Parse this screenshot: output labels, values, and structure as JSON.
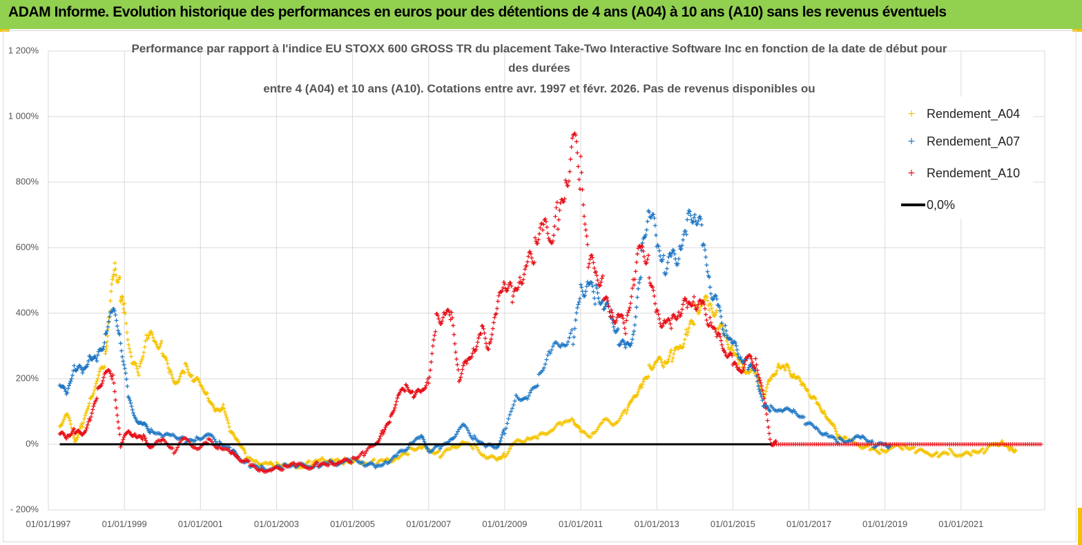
{
  "banner": {
    "title": "ADAM Informe. Evolution historique des performances en euros pour des détentions de 4 ans (A04) à 10 ans (A10) sans les revenus éventuels"
  },
  "colors": {
    "banner_bg": "#92d050",
    "A04": "#f5c400",
    "A07": "#1f77c4",
    "A10": "#e8121a",
    "zero_line": "#000000"
  },
  "chart_data": {
    "type": "scatter",
    "title_lines": [
      "Performance par rapport à l'indice EU STOXX 600 GROSS TR  du placement Take-Two Interactive Software Inc en fonction de la date de début pour",
      "des durées",
      "entre 4 (A04) et 10 ans (A10). Cotations entre avr. 1997 et févr. 2026. Pas de revenus disponibles ou"
    ],
    "marker": "+",
    "ylim": [
      -200,
      1200
    ],
    "y_ticks": [
      {
        "value": -200,
        "label": "- 200%"
      },
      {
        "value": 0,
        "label": "0%"
      },
      {
        "value": 200,
        "label": "200%"
      },
      {
        "value": 400,
        "label": "400%"
      },
      {
        "value": 600,
        "label": "600%"
      },
      {
        "value": 800,
        "label": "800%"
      },
      {
        "value": 1000,
        "label": "1 000%"
      },
      {
        "value": 1200,
        "label": "1 200%"
      }
    ],
    "xlim": [
      1997.0,
      2023.2
    ],
    "x_ticks": [
      {
        "value": 1997,
        "label": "01/01/1997"
      },
      {
        "value": 1999,
        "label": "01/01/1999"
      },
      {
        "value": 2001,
        "label": "01/01/2001"
      },
      {
        "value": 2003,
        "label": "01/01/2003"
      },
      {
        "value": 2005,
        "label": "01/01/2005"
      },
      {
        "value": 2007,
        "label": "01/01/2007"
      },
      {
        "value": 2009,
        "label": "01/01/2009"
      },
      {
        "value": 2011,
        "label": "01/01/2011"
      },
      {
        "value": 2013,
        "label": "01/01/2013"
      },
      {
        "value": 2015,
        "label": "01/01/2015"
      },
      {
        "value": 2017,
        "label": "01/01/2017"
      },
      {
        "value": 2019,
        "label": "01/01/2019"
      },
      {
        "value": 2021,
        "label": "01/01/2021"
      }
    ],
    "grid": true,
    "legend_position": "top-right",
    "series": [
      {
        "name": "Rendement_A04",
        "color": "#f5c400",
        "x": [
          1997.3,
          1997.5,
          1997.7,
          1997.9,
          1998.1,
          1998.3,
          1998.5,
          1998.6,
          1998.75,
          1998.9,
          1999.0,
          1999.2,
          1999.4,
          1999.6,
          1999.8,
          2000.0,
          2000.2,
          2000.4,
          2000.6,
          2000.8,
          2001.0,
          2001.2,
          2001.4,
          2001.6,
          2001.8,
          2002.0,
          2002.2,
          2002.5,
          2002.8,
          2003.0,
          2003.3,
          2003.6,
          2003.9,
          2004.2,
          2004.5,
          2004.8,
          2005.0,
          2005.3,
          2005.6,
          2005.9,
          2006.2,
          2006.5,
          2006.8,
          2007.0,
          2007.3,
          2007.6,
          2007.9,
          2008.2,
          2008.5,
          2008.8,
          2009.0,
          2009.3,
          2009.6,
          2009.9,
          2010.2,
          2010.5,
          2010.8,
          2011.0,
          2011.3,
          2011.6,
          2011.9,
          2012.2,
          2012.4,
          2012.6,
          2012.8,
          2013.0,
          2013.2,
          2013.4,
          2013.6,
          2013.8,
          2014.0,
          2014.2,
          2014.4,
          2014.6,
          2014.8,
          2015.0,
          2015.2,
          2015.4,
          2015.6,
          2015.8,
          2016.0,
          2016.2,
          2016.4,
          2016.6,
          2016.8,
          2017.0,
          2017.2,
          2017.4,
          2017.6,
          2017.8,
          2018.0,
          2018.3,
          2018.6,
          2018.9,
          2019.2,
          2019.5,
          2019.8,
          2020.1,
          2020.4,
          2020.7,
          2021.0,
          2021.3,
          2021.6,
          2021.9,
          2022.1,
          2022.3
        ],
        "y": [
          50,
          90,
          10,
          60,
          140,
          200,
          260,
          380,
          550,
          470,
          420,
          250,
          220,
          330,
          310,
          300,
          220,
          190,
          230,
          200,
          180,
          150,
          100,
          120,
          30,
          10,
          -40,
          -50,
          -60,
          -60,
          -70,
          -70,
          -60,
          -40,
          -50,
          -50,
          -55,
          -60,
          -55,
          -45,
          -40,
          -20,
          -10,
          -20,
          -30,
          -10,
          10,
          -10,
          -40,
          -50,
          -30,
          10,
          20,
          20,
          40,
          60,
          80,
          40,
          30,
          70,
          60,
          100,
          150,
          180,
          230,
          250,
          240,
          270,
          300,
          350,
          400,
          430,
          410,
          380,
          330,
          300,
          240,
          220,
          210,
          150,
          200,
          250,
          230,
          210,
          180,
          160,
          130,
          100,
          60,
          20,
          10,
          0,
          -10,
          -20,
          -10,
          -10,
          -20,
          -25,
          -30,
          -20,
          -35,
          -30,
          -20,
          0,
          10,
          -15
        ]
      },
      {
        "name": "Rendement_A07",
        "color": "#1f77c4",
        "x": [
          1997.3,
          1997.5,
          1997.7,
          1997.9,
          1998.1,
          1998.3,
          1998.5,
          1998.7,
          1998.9,
          1999.1,
          1999.3,
          1999.5,
          1999.7,
          2000.0,
          2000.3,
          2000.6,
          2000.9,
          2001.2,
          2001.5,
          2001.8,
          2002.0,
          2002.3,
          2002.6,
          2002.9,
          2003.2,
          2003.5,
          2003.8,
          2004.1,
          2004.4,
          2004.7,
          2005.0,
          2005.3,
          2005.6,
          2005.9,
          2006.2,
          2006.5,
          2006.8,
          2007.0,
          2007.3,
          2007.6,
          2007.9,
          2008.2,
          2008.5,
          2008.8,
          2009.0,
          2009.3,
          2009.6,
          2009.9,
          2010.2,
          2010.5,
          2010.8,
          2011.0,
          2011.2,
          2011.4,
          2011.6,
          2011.8,
          2012.0,
          2012.2,
          2012.4,
          2012.6,
          2012.8,
          2013.0,
          2013.2,
          2013.4,
          2013.6,
          2013.8,
          2014.0,
          2014.2,
          2014.4,
          2014.6,
          2014.8,
          2015.0,
          2015.2,
          2015.4,
          2015.6,
          2015.8,
          2016.0,
          2016.3,
          2016.6,
          2016.9,
          2017.2,
          2017.5,
          2017.8,
          2018.1,
          2018.4,
          2018.7,
          2019.0
        ],
        "y": [
          180,
          150,
          240,
          220,
          280,
          260,
          330,
          400,
          320,
          150,
          80,
          60,
          40,
          20,
          30,
          10,
          20,
          30,
          0,
          -20,
          -40,
          -60,
          -70,
          -75,
          -70,
          -65,
          -70,
          -60,
          -55,
          -55,
          -50,
          -60,
          -70,
          -50,
          -30,
          0,
          20,
          -20,
          -10,
          20,
          60,
          20,
          -10,
          -10,
          40,
          150,
          140,
          200,
          280,
          300,
          330,
          480,
          500,
          450,
          420,
          380,
          330,
          300,
          350,
          550,
          720,
          600,
          560,
          580,
          600,
          650,
          700,
          620,
          500,
          430,
          350,
          300,
          260,
          240,
          230,
          120,
          110,
          100,
          100,
          70,
          50,
          30,
          10,
          10,
          20,
          0,
          0
        ]
      },
      {
        "name": "Rendement_A10",
        "color": "#e8121a",
        "x": [
          1997.3,
          1997.5,
          1997.7,
          1997.9,
          1998.1,
          1998.3,
          1998.5,
          1998.7,
          1998.9,
          1999.1,
          1999.3,
          1999.5,
          1999.7,
          2000.0,
          2000.3,
          2000.6,
          2000.9,
          2001.2,
          2001.5,
          2001.8,
          2002.0,
          2002.3,
          2002.6,
          2002.9,
          2003.2,
          2003.5,
          2003.8,
          2004.1,
          2004.4,
          2004.7,
          2005.0,
          2005.3,
          2005.6,
          2005.8,
          2006.0,
          2006.2,
          2006.4,
          2006.6,
          2006.8,
          2007.0,
          2007.2,
          2007.4,
          2007.6,
          2007.8,
          2008.0,
          2008.2,
          2008.4,
          2008.6,
          2008.8,
          2009.0,
          2009.2,
          2009.4,
          2009.6,
          2009.8,
          2010.0,
          2010.2,
          2010.4,
          2010.6,
          2010.8,
          2011.0,
          2011.2,
          2011.4,
          2011.6,
          2011.8,
          2012.0,
          2012.2,
          2012.4,
          2012.6,
          2012.8,
          2013.0,
          2013.2,
          2013.4,
          2013.6,
          2013.8,
          2014.0,
          2014.2,
          2014.4,
          2014.6,
          2014.8,
          2015.0,
          2015.2,
          2015.4,
          2015.6,
          2015.8,
          2016.0
        ],
        "y": [
          30,
          20,
          40,
          30,
          80,
          160,
          220,
          200,
          0,
          40,
          30,
          20,
          -10,
          10,
          -20,
          20,
          -10,
          10,
          -10,
          -30,
          -40,
          -60,
          -75,
          -80,
          -70,
          -65,
          -70,
          -60,
          -55,
          -55,
          -50,
          -30,
          0,
          40,
          80,
          150,
          170,
          150,
          160,
          200,
          380,
          400,
          380,
          200,
          250,
          300,
          350,
          300,
          400,
          500,
          450,
          520,
          550,
          600,
          650,
          620,
          700,
          800,
          950,
          820,
          550,
          520,
          480,
          400,
          400,
          350,
          500,
          600,
          550,
          400,
          380,
          360,
          400,
          420,
          450,
          430,
          380,
          320,
          280,
          250,
          230,
          270,
          250,
          150,
          0
        ]
      }
    ],
    "zero_line": {
      "name": "0,0%",
      "value": 0,
      "x_range": [
        1997.3,
        2016.0
      ]
    },
    "zero_scatter_tail": {
      "series": "Rendement_A10",
      "x_range": [
        2016.0,
        2023.1
      ],
      "value": 0
    }
  }
}
